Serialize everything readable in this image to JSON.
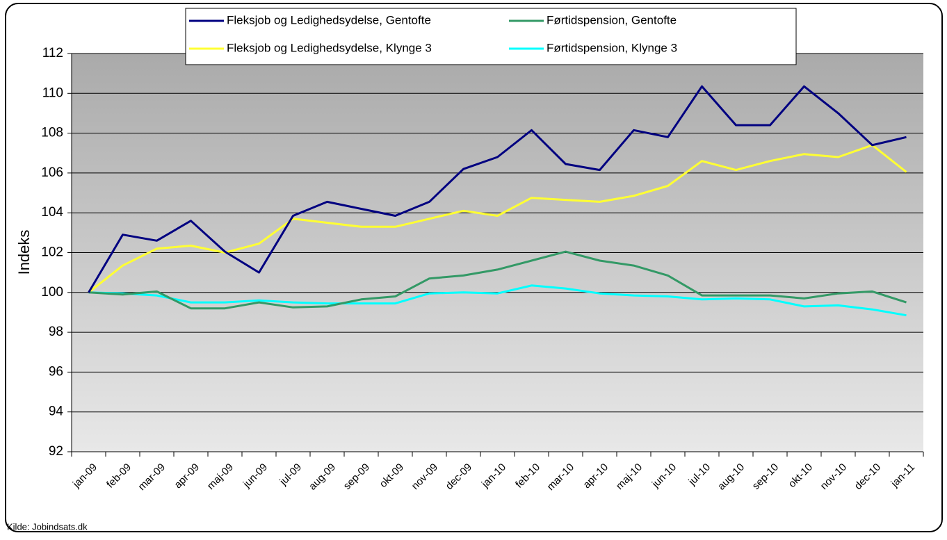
{
  "chart_data": {
    "type": "line",
    "ylabel": "Indeks",
    "source": "Kilde: Jobindsats.dk",
    "categories": [
      "jan-09",
      "feb-09",
      "mar-09",
      "apr-09",
      "maj-09",
      "jun-09",
      "jul-09",
      "aug-09",
      "sep-09",
      "okt-09",
      "nov-09",
      "dec-09",
      "jan-10",
      "feb-10",
      "mar-10",
      "apr-10",
      "maj-10",
      "jun-10",
      "jul-10",
      "aug-10",
      "sep-10",
      "okt-10",
      "nov-10",
      "dec-10",
      "jan-11"
    ],
    "series": [
      {
        "name": "Fleksjob og Ledighedsydelse, Gentofte",
        "color": "#000080",
        "values": [
          100,
          102.9,
          102.6,
          103.6,
          102.05,
          101.0,
          103.85,
          104.55,
          104.2,
          103.85,
          104.55,
          106.2,
          106.8,
          108.15,
          106.45,
          106.15,
          108.15,
          107.8,
          110.35,
          108.4,
          108.4,
          110.35,
          109.0,
          107.4,
          107.8
        ]
      },
      {
        "name": "Førtidspension, Gentofte",
        "color": "#339966",
        "values": [
          100,
          99.9,
          100.05,
          99.2,
          99.2,
          99.5,
          99.25,
          99.3,
          99.65,
          99.8,
          100.7,
          100.85,
          101.15,
          101.6,
          102.05,
          101.6,
          101.35,
          100.85,
          99.85,
          99.85,
          99.85,
          99.7,
          99.95,
          100.05,
          99.5
        ]
      },
      {
        "name": "Fleksjob og Ledighedsydelse, Klynge 3",
        "color": "#ffff33",
        "values": [
          100,
          101.35,
          102.2,
          102.35,
          102.0,
          102.45,
          103.7,
          103.5,
          103.3,
          103.3,
          103.7,
          104.1,
          103.85,
          104.75,
          104.65,
          104.55,
          104.85,
          105.35,
          106.6,
          106.15,
          106.6,
          106.95,
          106.8,
          107.4,
          106.05
        ]
      },
      {
        "name": "Førtidspension, Klynge 3",
        "color": "#00ffff",
        "values": [
          100,
          99.95,
          99.85,
          99.5,
          99.5,
          99.6,
          99.5,
          99.45,
          99.45,
          99.45,
          99.95,
          100.0,
          99.95,
          100.35,
          100.2,
          99.95,
          99.85,
          99.8,
          99.65,
          99.7,
          99.65,
          99.3,
          99.35,
          99.15,
          98.85
        ]
      }
    ],
    "ylim": [
      92,
      112
    ],
    "yticks": [
      92,
      94,
      96,
      98,
      100,
      102,
      104,
      106,
      108,
      110,
      112
    ],
    "grid": true
  }
}
